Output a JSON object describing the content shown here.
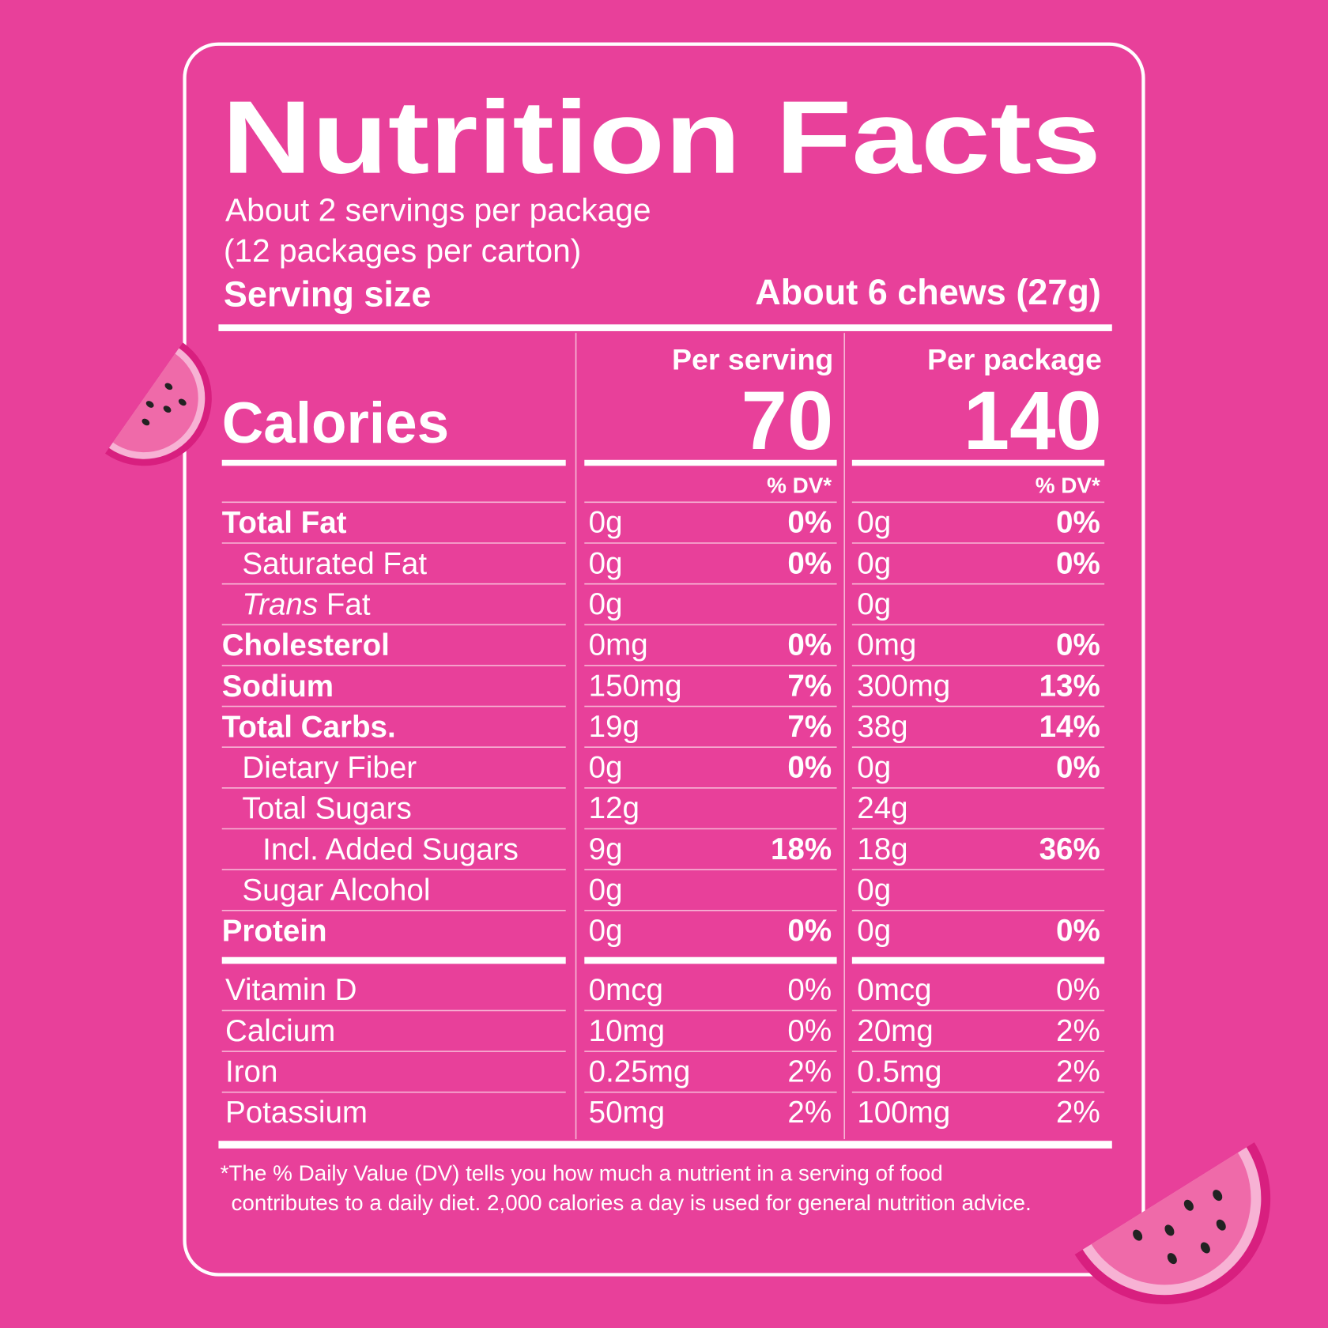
{
  "title": "Nutrition Facts",
  "servings": [
    "About 2 servings per package",
    "(12 packages per carton)"
  ],
  "serving_size": {
    "label": "Serving size",
    "value": "About 6 chews (27g)"
  },
  "calories": {
    "label": "Calories"
  },
  "columns": [
    {
      "heading": "Per serving",
      "calories": 70,
      "dv_heading": "% DV*"
    },
    {
      "heading": "Per package",
      "calories": 140,
      "dv_heading": "% DV*"
    }
  ],
  "nutrients": [
    {
      "name": "Total Fat",
      "values": [
        {
          "amount": "0g",
          "dv": "0%"
        },
        {
          "amount": "0g",
          "dv": "0%"
        }
      ],
      "sub": [
        {
          "name": "Saturated Fat",
          "values": [
            {
              "amount": "0g",
              "dv": "0%"
            },
            {
              "amount": "0g",
              "dv": "0%"
            }
          ]
        },
        {
          "name_italic": "Trans",
          "name": "Fat",
          "values": [
            {
              "amount": "0g"
            },
            {
              "amount": "0g"
            }
          ]
        }
      ]
    },
    {
      "name": "Cholesterol",
      "values": [
        {
          "amount": "0mg",
          "dv": "0%"
        },
        {
          "amount": "0mg",
          "dv": "0%"
        }
      ]
    },
    {
      "name": "Sodium",
      "values": [
        {
          "amount": "150mg",
          "dv": "7%"
        },
        {
          "amount": "300mg",
          "dv": "13%"
        }
      ]
    },
    {
      "name": "Total Carbs.",
      "values": [
        {
          "amount": "19g",
          "dv": "7%"
        },
        {
          "amount": "38g",
          "dv": "14%"
        }
      ],
      "sub": [
        {
          "name": "Dietary Fiber",
          "values": [
            {
              "amount": "0g",
              "dv": "0%"
            },
            {
              "amount": "0g",
              "dv": "0%"
            }
          ]
        },
        {
          "name": "Total Sugars",
          "values": [
            {
              "amount": "12g"
            },
            {
              "amount": "24g"
            }
          ],
          "sub": [
            {
              "name": "Incl. Added Sugars",
              "values": [
                {
                  "amount": "9g",
                  "dv": "18%"
                },
                {
                  "amount": "18g",
                  "dv": "36%"
                }
              ]
            }
          ]
        },
        {
          "name": "Sugar Alcohol",
          "values": [
            {
              "amount": "0g"
            },
            {
              "amount": "0g"
            }
          ]
        }
      ]
    },
    {
      "name": "Protein",
      "values": [
        {
          "amount": "0g",
          "dv": "0%"
        },
        {
          "amount": "0g",
          "dv": "0%"
        }
      ]
    }
  ],
  "vitamins": [
    {
      "name": "Vitamin D",
      "values": [
        {
          "amount": "0mcg",
          "dv": "0%"
        },
        {
          "amount": "0mcg",
          "dv": "0%"
        }
      ]
    },
    {
      "name": "Calcium",
      "values": [
        {
          "amount": "10mg",
          "dv": "0%"
        },
        {
          "amount": "20mg",
          "dv": "2%"
        }
      ]
    },
    {
      "name": "Iron",
      "values": [
        {
          "amount": "0.25mg",
          "dv": "2%"
        },
        {
          "amount": "0.5mg",
          "dv": "2%"
        }
      ]
    },
    {
      "name": "Potassium",
      "values": [
        {
          "amount": "50mg",
          "dv": "2%"
        },
        {
          "amount": "100mg",
          "dv": "2%"
        }
      ]
    }
  ],
  "footnote": [
    "*The % Daily Value (DV) tells you how much a nutrient in a serving of food",
    "contributes to a daily diet. 2,000 calories a day is used for general nutrition advice."
  ]
}
